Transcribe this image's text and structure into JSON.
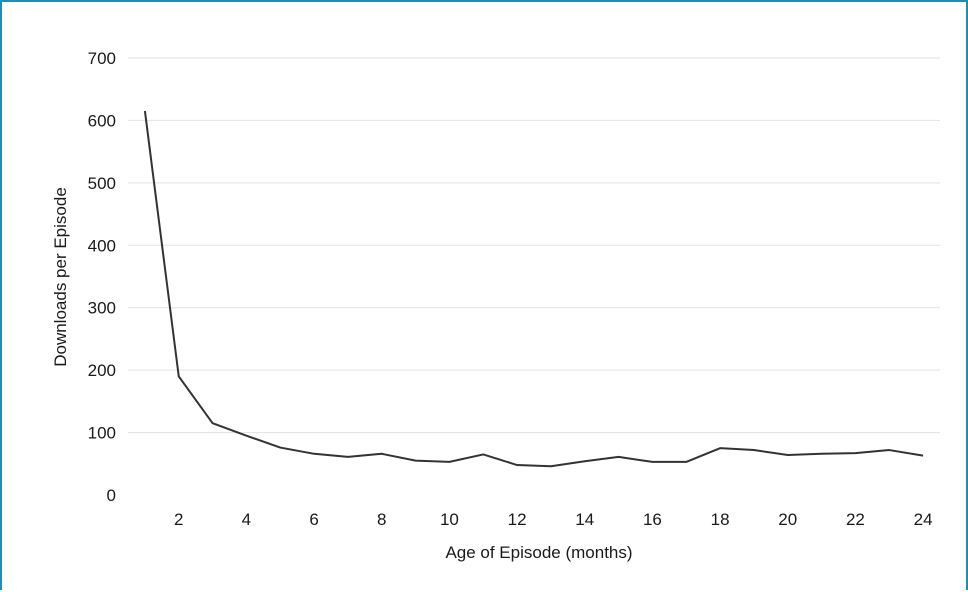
{
  "chart_data": {
    "type": "line",
    "title": "",
    "xlabel": "Age of Episode (months)",
    "ylabel": "Downloads per Episode",
    "xlim": [
      0.5,
      24.5
    ],
    "ylim": [
      0,
      700
    ],
    "xticks": [
      2,
      4,
      6,
      8,
      10,
      12,
      14,
      16,
      18,
      20,
      22,
      24
    ],
    "yticks": [
      0,
      100,
      200,
      300,
      400,
      500,
      600,
      700
    ],
    "grid": "horizontal",
    "x": [
      1,
      2,
      3,
      4,
      5,
      6,
      7,
      8,
      9,
      10,
      11,
      12,
      13,
      14,
      15,
      16,
      17,
      18,
      19,
      20,
      21,
      22,
      23,
      24
    ],
    "series": [
      {
        "values": [
          615,
          190,
          115,
          95,
          76,
          66,
          61,
          66,
          55,
          53,
          65,
          48,
          46,
          54,
          61,
          53,
          53,
          75,
          72,
          64,
          66,
          67,
          72,
          63
        ]
      }
    ],
    "line_color": "#333333"
  }
}
